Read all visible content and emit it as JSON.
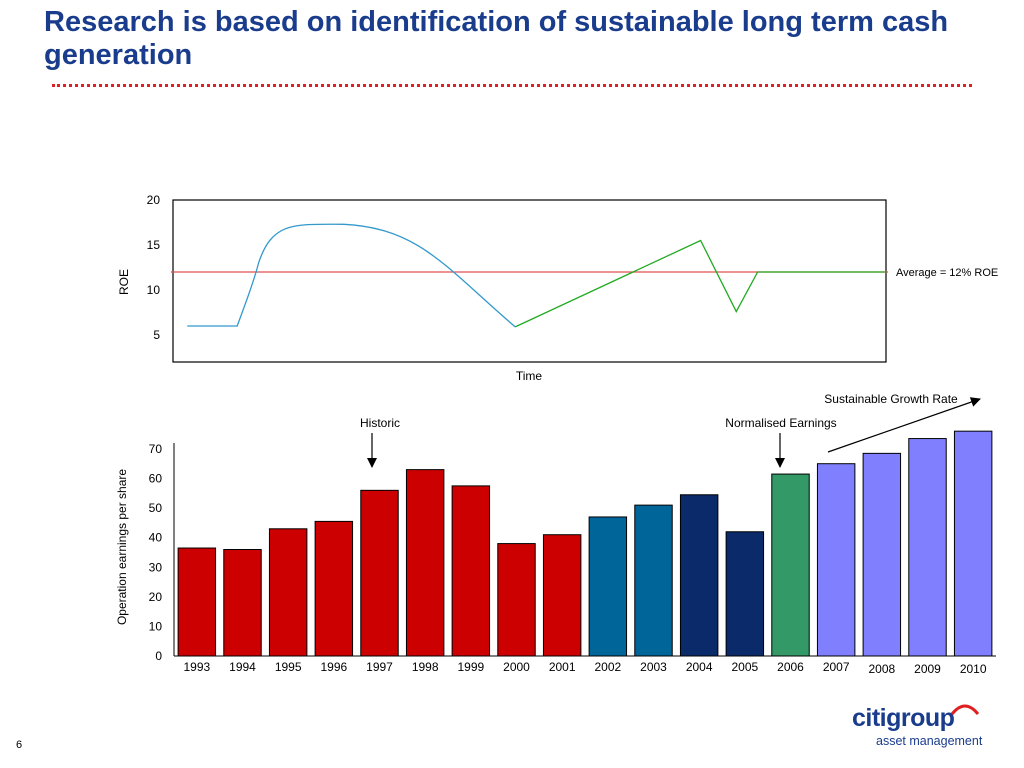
{
  "slide": {
    "title": "Research is based on identification of sustainable long term cash generation",
    "page_number": "6"
  },
  "colors": {
    "title": "#1a3c8c",
    "rule": "#e02020",
    "roe_curve": "#3399cc",
    "roe_line_green": "#22aa22",
    "average_line": "#e05050",
    "historic_bar": "#cc0000",
    "mid_blue_bar": "#006699",
    "navy_bar": "#0a2a6a",
    "normalised_bar": "#339966",
    "growth_bar": "#8080ff"
  },
  "logo": {
    "brand": "citigroup",
    "sub": "asset management"
  },
  "chart_data": [
    {
      "type": "line",
      "xlabel": "Time",
      "ylabel": "ROE",
      "yticks": [
        "5",
        "10",
        "15",
        "20"
      ],
      "ylim": [
        2,
        20
      ],
      "series": [
        {
          "segment": "curve",
          "color": "#3399cc",
          "points": [
            [
              0.02,
              6.0
            ],
            [
              0.09,
              6.0
            ],
            [
              0.12,
              13.0
            ],
            [
              0.24,
              17.3
            ],
            [
              0.48,
              5.9
            ]
          ]
        },
        {
          "segment": "line",
          "color": "#22aa22",
          "points": [
            [
              0.48,
              5.9
            ],
            [
              0.74,
              15.5
            ],
            [
              0.79,
              7.6
            ],
            [
              0.82,
              12.0
            ],
            [
              1.0,
              12.0
            ]
          ]
        }
      ],
      "reference_line": {
        "value": 12,
        "label": "Average = 12% ROE"
      }
    },
    {
      "type": "bar",
      "ylabel": "Operation earnings per share",
      "yticks": [
        "0",
        "10",
        "20",
        "30",
        "40",
        "50",
        "60",
        "70"
      ],
      "ylim": [
        0,
        72
      ],
      "categories": [
        "1993",
        "1994",
        "1995",
        "1996",
        "1997",
        "1998",
        "1999",
        "2000",
        "2001",
        "2002",
        "2003",
        "2004",
        "2005",
        "2006",
        "2007",
        "2008",
        "2009",
        "2010"
      ],
      "values": [
        36.5,
        36,
        43,
        45.5,
        56,
        63,
        57.5,
        38,
        41,
        47,
        51,
        54.5,
        42,
        61.5,
        65,
        68.5,
        73.5,
        76
      ],
      "bar_colors": [
        "#cc0000",
        "#cc0000",
        "#cc0000",
        "#cc0000",
        "#cc0000",
        "#cc0000",
        "#cc0000",
        "#cc0000",
        "#cc0000",
        "#006699",
        "#006699",
        "#0a2a6a",
        "#0a2a6a",
        "#339966",
        "#8080ff",
        "#8080ff",
        "#8080ff",
        "#8080ff"
      ],
      "annotations": [
        {
          "text": "Historic",
          "target": "1997"
        },
        {
          "text": "Normalised Earnings",
          "target": "2006"
        },
        {
          "text": "Sustainable Growth Rate",
          "from": "2007",
          "to": "2010"
        }
      ]
    }
  ]
}
